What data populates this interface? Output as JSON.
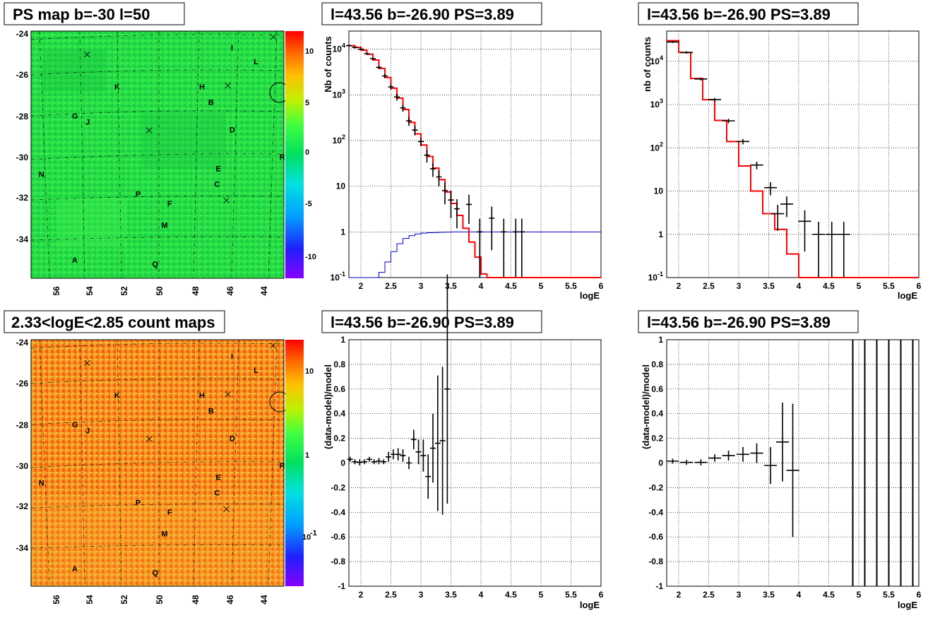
{
  "colors": {
    "red": "#ff0000",
    "blue": "#0000cc",
    "black": "#000000"
  },
  "panels": {
    "map1": {
      "title": "PS map b=-30 l=50",
      "zlabels": [
        "10",
        "5",
        "0",
        "-5",
        "-10"
      ]
    },
    "map2": {
      "title": "2.33<logE<2.85 count maps",
      "zlabels": [
        "10",
        "1",
        "10",
        "-1"
      ]
    },
    "spec1": {
      "title": "l=43.56 b=-26.90 PS=3.89",
      "ylabel": "Nb of counts",
      "xlabel": "logE"
    },
    "spec2": {
      "title": "l=43.56 b=-26.90 PS=3.89",
      "ylabel": "nb of counts",
      "xlabel": "logE"
    },
    "res1": {
      "title": "l=43.56 b=-26.90 PS=3.89",
      "ylabel": "(data-model)/model",
      "xlabel": "logE"
    },
    "res2": {
      "title": "l=43.56 b=-26.90 PS=3.89",
      "ylabel": "(data-model)/model",
      "xlabel": "logE"
    }
  },
  "map_axes": {
    "xticks": [
      "56",
      "54",
      "52",
      "50",
      "48",
      "46",
      "44"
    ],
    "yticks": [
      "-24",
      "-26",
      "-28",
      "-30",
      "-32",
      "-34"
    ]
  },
  "map_sources": [
    {
      "id": "I",
      "l": 45.8,
      "b": -24.6
    },
    {
      "id": "L",
      "l": 44.3,
      "b": -25.3
    },
    {
      "id": "K",
      "l": 53.5,
      "b": -26.6
    },
    {
      "id": "H",
      "l": 47.9,
      "b": -26.6
    },
    {
      "id": "B",
      "l": 47.3,
      "b": -27.4
    },
    {
      "id": "G",
      "l": 56.3,
      "b": -28.1
    },
    {
      "id": "J",
      "l": 55.4,
      "b": -28.4
    },
    {
      "id": "D",
      "l": 45.9,
      "b": -28.8
    },
    {
      "id": "R",
      "l": 42.6,
      "b": -30.2
    },
    {
      "id": "E",
      "l": 46.8,
      "b": -30.8
    },
    {
      "id": "N",
      "l": 58.5,
      "b": -31.1
    },
    {
      "id": "C",
      "l": 46.9,
      "b": -31.6
    },
    {
      "id": "P",
      "l": 52.1,
      "b": -32.1
    },
    {
      "id": "F",
      "l": 50.0,
      "b": -32.6
    },
    {
      "id": "M",
      "l": 50.4,
      "b": -33.7
    },
    {
      "id": "A",
      "l": 56.3,
      "b": -35.5
    },
    {
      "id": "Q",
      "l": 51.0,
      "b": -35.7
    }
  ],
  "map_crosses": [
    {
      "l": 55.3,
      "b": -24.8
    },
    {
      "l": 46.0,
      "b": -26.4
    },
    {
      "l": 51.2,
      "b": -28.7
    },
    {
      "l": 46.1,
      "b": -32.3
    },
    {
      "l": 43.0,
      "b": -23.9
    }
  ],
  "map_circle": {
    "l": 43.5,
    "b": -26.9
  },
  "chart_data": [
    {
      "type": "line",
      "name": "spec1",
      "log_y": true,
      "xlim": [
        1.8,
        6
      ],
      "ylim": [
        0.1,
        25000
      ],
      "xticks": [
        "2",
        "2.5",
        "3",
        "3.5",
        "4",
        "4.5",
        "5",
        "5.5",
        "6"
      ],
      "yticks": [
        "10^4",
        "10^3",
        "10^2",
        "10",
        "1",
        "10^-1"
      ],
      "data_points": [
        {
          "x": 1.8,
          "y": 12000,
          "err": 700
        },
        {
          "x": 1.9,
          "y": 11000,
          "err": 600
        },
        {
          "x": 2.0,
          "y": 10000,
          "err": 550
        },
        {
          "x": 2.1,
          "y": 8000,
          "err": 450
        },
        {
          "x": 2.2,
          "y": 6200,
          "err": 400
        },
        {
          "x": 2.3,
          "y": 4000,
          "err": 320
        },
        {
          "x": 2.4,
          "y": 2600,
          "err": 250
        },
        {
          "x": 2.5,
          "y": 1500,
          "err": 200
        },
        {
          "x": 2.6,
          "y": 900,
          "err": 150
        },
        {
          "x": 2.7,
          "y": 520,
          "err": 90
        },
        {
          "x": 2.8,
          "y": 270,
          "err": 60
        },
        {
          "x": 2.9,
          "y": 170,
          "err": 40
        },
        {
          "x": 3.0,
          "y": 95,
          "err": 20
        },
        {
          "x": 3.1,
          "y": 48,
          "err": 15
        },
        {
          "x": 3.2,
          "y": 24,
          "err": 8
        },
        {
          "x": 3.3,
          "y": 16,
          "err": 6
        },
        {
          "x": 3.4,
          "y": 8,
          "err": 4
        },
        {
          "x": 3.5,
          "y": 5,
          "err": 3
        },
        {
          "x": 3.6,
          "y": 3.2,
          "err": 2
        },
        {
          "x": 3.8,
          "y": 4,
          "err": 2.5
        },
        {
          "x": 3.98,
          "y": 1,
          "err": 0.95
        },
        {
          "x": 4.18,
          "y": 2,
          "err": 1.6
        },
        {
          "x": 4.38,
          "y": 1,
          "err": 0.95
        },
        {
          "x": 4.58,
          "y": 1,
          "err": 0.95
        },
        {
          "x": 4.68,
          "y": 1,
          "err": 0.95
        }
      ],
      "model_red": [
        [
          1.8,
          12000
        ],
        [
          1.9,
          11000
        ],
        [
          2.0,
          9500
        ],
        [
          2.1,
          7800
        ],
        [
          2.2,
          5800
        ],
        [
          2.3,
          3800
        ],
        [
          2.4,
          2400
        ],
        [
          2.5,
          1400
        ],
        [
          2.6,
          850
        ],
        [
          2.7,
          480
        ],
        [
          2.8,
          250
        ],
        [
          2.9,
          140
        ],
        [
          3.0,
          80
        ],
        [
          3.1,
          45
        ],
        [
          3.2,
          25
        ],
        [
          3.3,
          14
        ],
        [
          3.4,
          7.5
        ],
        [
          3.5,
          4.2
        ],
        [
          3.6,
          2.3
        ],
        [
          3.7,
          1.2
        ],
        [
          3.8,
          0.6
        ],
        [
          3.9,
          0.28
        ],
        [
          4.0,
          0.12
        ],
        [
          4.1,
          0.1
        ],
        [
          6.0,
          0.1
        ]
      ],
      "model_blue": [
        [
          1.8,
          0.1
        ],
        [
          2.2,
          0.1
        ],
        [
          2.3,
          0.13
        ],
        [
          2.4,
          0.22
        ],
        [
          2.5,
          0.37
        ],
        [
          2.6,
          0.55
        ],
        [
          2.7,
          0.72
        ],
        [
          2.8,
          0.83
        ],
        [
          2.9,
          0.9
        ],
        [
          3.0,
          0.94
        ],
        [
          3.1,
          0.96
        ],
        [
          3.2,
          0.97
        ],
        [
          3.3,
          0.98
        ],
        [
          3.4,
          0.99
        ],
        [
          3.5,
          1
        ],
        [
          6.0,
          1
        ]
      ]
    },
    {
      "type": "line",
      "name": "spec2",
      "log_y": true,
      "xlim": [
        1.8,
        6
      ],
      "ylim": [
        0.1,
        50000
      ],
      "xticks": [
        "2",
        "2.5",
        "3",
        "3.5",
        "4",
        "4.5",
        "5",
        "5.5",
        "6"
      ],
      "yticks": [
        "10^4",
        "10^3",
        "10^2",
        "10",
        "1",
        "10^-1"
      ],
      "data_points": [
        {
          "x": 1.9,
          "y": 28000,
          "err": 1500
        },
        {
          "x": 2.13,
          "y": 16000,
          "err": 1000
        },
        {
          "x": 2.37,
          "y": 3900,
          "err": 300
        },
        {
          "x": 2.6,
          "y": 1300,
          "err": 120
        },
        {
          "x": 2.83,
          "y": 420,
          "err": 50
        },
        {
          "x": 3.07,
          "y": 140,
          "err": 20
        },
        {
          "x": 3.3,
          "y": 40,
          "err": 8
        },
        {
          "x": 3.53,
          "y": 12,
          "err": 4
        },
        {
          "x": 3.65,
          "y": 3,
          "err": 1.8
        },
        {
          "x": 3.8,
          "y": 5,
          "err": 2.5
        },
        {
          "x": 4.1,
          "y": 2,
          "err": 1.6
        },
        {
          "x": 4.33,
          "y": 1,
          "err": 0.95
        },
        {
          "x": 4.55,
          "y": 1,
          "err": 0.95
        },
        {
          "x": 4.75,
          "y": 1,
          "err": 0.95
        }
      ],
      "model_red": [
        [
          1.8,
          30000
        ],
        [
          2.0,
          16000
        ],
        [
          2.2,
          4000
        ],
        [
          2.4,
          1300
        ],
        [
          2.6,
          430
        ],
        [
          2.8,
          140
        ],
        [
          3.0,
          38
        ],
        [
          3.2,
          10
        ],
        [
          3.4,
          3
        ],
        [
          3.6,
          1.3
        ],
        [
          3.8,
          0.35
        ],
        [
          4.0,
          0.1
        ],
        [
          6.0,
          0.1
        ]
      ]
    },
    {
      "type": "scatter",
      "name": "res1",
      "xlim": [
        1.8,
        6
      ],
      "ylim": [
        -1,
        1
      ],
      "xticks": [
        "2",
        "2.5",
        "3",
        "3.5",
        "4",
        "4.5",
        "5",
        "5.5",
        "6"
      ],
      "yticks": [
        "1",
        "0.8",
        "0.6",
        "0.4",
        "0.2",
        "0",
        "-0.2",
        "-0.4",
        "-0.6",
        "-0.8",
        "-1"
      ],
      "data_points": [
        {
          "x": 1.82,
          "y": 0.03,
          "err": 0.02
        },
        {
          "x": 1.9,
          "y": 0.01,
          "err": 0.02
        },
        {
          "x": 1.98,
          "y": 0.005,
          "err": 0.025
        },
        {
          "x": 2.06,
          "y": 0.01,
          "err": 0.02
        },
        {
          "x": 2.14,
          "y": 0.03,
          "err": 0.02
        },
        {
          "x": 2.22,
          "y": 0.01,
          "err": 0.02
        },
        {
          "x": 2.3,
          "y": 0.015,
          "err": 0.025
        },
        {
          "x": 2.38,
          "y": 0.01,
          "err": 0.02
        },
        {
          "x": 2.46,
          "y": 0.05,
          "err": 0.04
        },
        {
          "x": 2.54,
          "y": 0.07,
          "err": 0.04
        },
        {
          "x": 2.62,
          "y": 0.07,
          "err": 0.05
        },
        {
          "x": 2.7,
          "y": 0.06,
          "err": 0.05
        },
        {
          "x": 2.8,
          "y": 0.0,
          "err": 0.05
        },
        {
          "x": 2.88,
          "y": 0.19,
          "err": 0.08
        },
        {
          "x": 2.96,
          "y": 0.09,
          "err": 0.1
        },
        {
          "x": 3.04,
          "y": 0.06,
          "err": 0.13
        },
        {
          "x": 3.12,
          "y": -0.11,
          "err": 0.18
        },
        {
          "x": 3.2,
          "y": 0.12,
          "err": 0.28
        },
        {
          "x": 3.28,
          "y": 0.16,
          "err": 0.55
        },
        {
          "x": 3.36,
          "y": 0.18,
          "err": 0.6
        },
        {
          "x": 3.44,
          "y": 0.6,
          "err": 0.93
        }
      ]
    },
    {
      "type": "scatter",
      "name": "res2",
      "xlim": [
        1.8,
        6
      ],
      "ylim": [
        -1,
        1
      ],
      "xticks": [
        "2",
        "2.5",
        "3",
        "3.5",
        "4",
        "4.5",
        "5",
        "5.5",
        "6"
      ],
      "yticks": [
        "1",
        "0.8",
        "0.6",
        "0.4",
        "0.2",
        "0",
        "-0.2",
        "-0.4",
        "-0.6",
        "-0.8",
        "-1"
      ],
      "data_points": [
        {
          "x": 1.9,
          "y": 0.015,
          "err": 0.02
        },
        {
          "x": 2.13,
          "y": 0.005,
          "err": 0.02
        },
        {
          "x": 2.37,
          "y": 0.005,
          "err": 0.025
        },
        {
          "x": 2.6,
          "y": 0.04,
          "err": 0.03
        },
        {
          "x": 2.83,
          "y": 0.06,
          "err": 0.04
        },
        {
          "x": 3.07,
          "y": 0.07,
          "err": 0.06
        },
        {
          "x": 3.3,
          "y": 0.08,
          "err": 0.08
        },
        {
          "x": 3.53,
          "y": -0.02,
          "err": 0.15
        },
        {
          "x": 3.73,
          "y": 0.17,
          "err": 0.32
        },
        {
          "x": 3.9,
          "y": -0.06,
          "err": 0.54
        }
      ],
      "full_bars": [
        4.9,
        5.1,
        5.3,
        5.5,
        5.7,
        5.9
      ]
    }
  ]
}
